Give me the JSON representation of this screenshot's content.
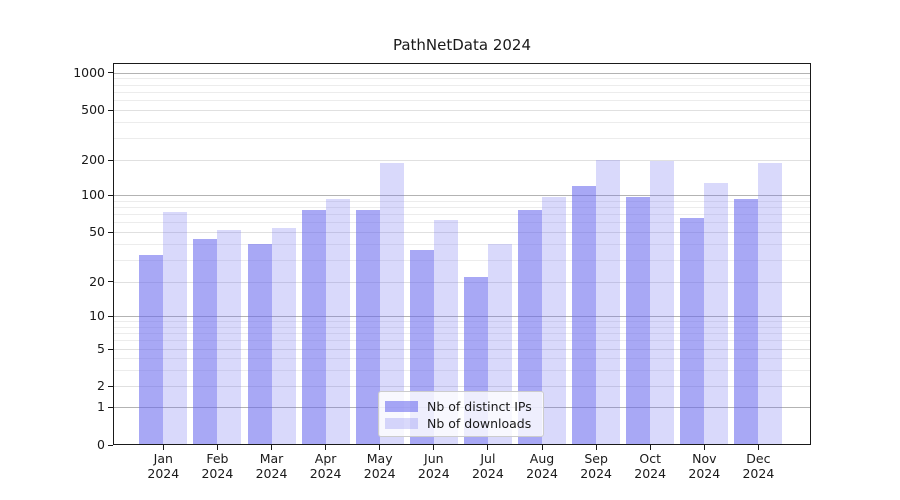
{
  "chart_data": {
    "type": "bar",
    "title": "PathNetData 2024",
    "year_label": "2024",
    "categories": [
      "Jan",
      "Feb",
      "Mar",
      "Apr",
      "May",
      "Jun",
      "Jul",
      "Aug",
      "Sep",
      "Oct",
      "Nov",
      "Dec"
    ],
    "series": [
      {
        "name": "Nb of distinct IPs",
        "color": "#6666ee",
        "alpha": 0.57,
        "values": [
          33,
          44,
          40,
          75,
          76,
          36,
          22,
          76,
          120,
          97,
          65,
          92
        ]
      },
      {
        "name": "Nb of downloads",
        "color": "#6666ee",
        "alpha": 0.25,
        "values": [
          73,
          52,
          54,
          92,
          190,
          63,
          40,
          96,
          200,
          197,
          126,
          190
        ]
      }
    ],
    "yscale": "symlog",
    "yticks": [
      1000,
      500,
      200,
      100,
      50,
      20,
      10,
      5,
      2,
      1,
      0
    ],
    "ylim": [
      0,
      1200
    ],
    "grid": true,
    "legend_position": "lower center",
    "colors": {
      "axis": "#1a1a1a",
      "text": "#1a1a1a",
      "grid_major": "#b3b3b3",
      "grid_mid": "#e0e0e0",
      "grid_minor": "#ececec",
      "legend_border": "#cccccc"
    }
  }
}
